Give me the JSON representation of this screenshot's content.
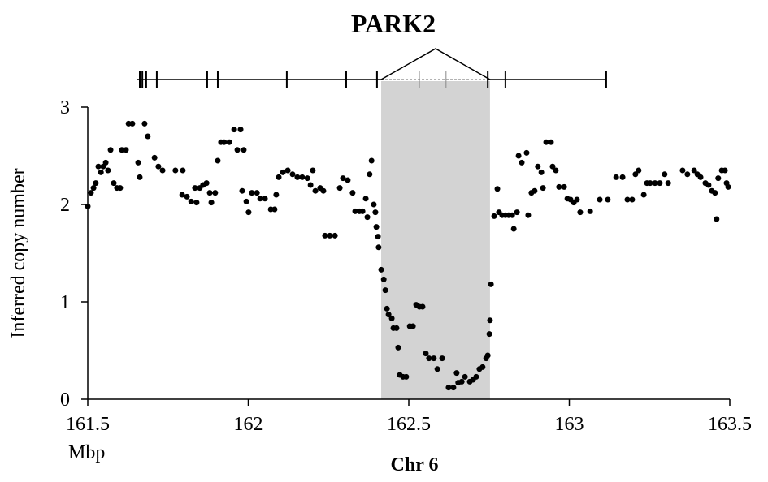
{
  "chart_data": {
    "type": "scatter",
    "title": "PARK2",
    "xlabel": "Chr 6",
    "x_unit": "Mbp",
    "ylabel": "Inferred copy number",
    "xlim": [
      161.5,
      163.5
    ],
    "xticks": [
      161.5,
      162,
      162.5,
      163,
      163.5
    ],
    "ylim": [
      0,
      3
    ],
    "yticks": [
      0,
      1,
      2,
      3
    ],
    "color": "#000000",
    "highlight_color": "#d3d3d3",
    "highlight": [
      162.414,
      162.753
    ],
    "gene": {
      "start": 161.652,
      "end": 163.115,
      "exons": [
        161.662,
        161.67,
        161.682,
        161.715,
        161.872,
        161.905,
        162.12,
        162.305,
        162.401,
        162.533,
        162.616,
        162.746,
        162.801,
        163.115
      ]
    },
    "x": [
      161.5,
      161.51,
      161.518,
      161.525,
      161.533,
      161.541,
      161.548,
      161.556,
      161.563,
      161.571,
      161.581,
      161.591,
      161.601,
      161.606,
      161.619,
      161.627,
      161.639,
      161.657,
      161.662,
      161.677,
      161.687,
      161.708,
      161.72,
      161.733,
      161.773,
      161.796,
      161.794,
      161.809,
      161.822,
      161.834,
      161.839,
      161.849,
      161.859,
      161.87,
      161.88,
      161.885,
      161.897,
      161.905,
      161.915,
      161.925,
      161.941,
      161.956,
      161.976,
      161.966,
      161.986,
      161.981,
      161.994,
      162.001,
      162.011,
      162.027,
      162.037,
      162.052,
      162.07,
      162.082,
      162.087,
      162.095,
      162.108,
      162.123,
      162.138,
      162.153,
      162.168,
      162.184,
      162.194,
      162.201,
      162.209,
      162.224,
      162.234,
      162.239,
      162.254,
      162.27,
      162.285,
      162.295,
      162.31,
      162.325,
      162.333,
      162.346,
      162.356,
      162.366,
      162.371,
      162.378,
      162.384,
      162.391,
      162.396,
      162.399,
      162.404,
      162.406,
      162.414,
      162.422,
      162.427,
      162.432,
      162.437,
      162.447,
      162.452,
      162.462,
      162.467,
      162.472,
      162.482,
      162.492,
      162.503,
      162.513,
      162.523,
      162.533,
      162.543,
      162.553,
      162.563,
      162.578,
      162.589,
      162.604,
      162.624,
      162.639,
      162.649,
      162.654,
      162.665,
      162.675,
      162.69,
      162.7,
      162.71,
      162.72,
      162.73,
      162.741,
      162.746,
      162.751,
      162.753,
      162.756,
      162.766,
      162.776,
      162.781,
      162.791,
      162.801,
      162.811,
      162.822,
      162.827,
      162.837,
      162.842,
      162.852,
      162.867,
      162.872,
      162.882,
      162.892,
      162.902,
      162.913,
      162.918,
      162.928,
      162.943,
      162.948,
      162.958,
      162.968,
      162.984,
      162.994,
      163.004,
      163.014,
      163.024,
      163.034,
      163.065,
      163.095,
      163.12,
      163.146,
      163.166,
      163.181,
      163.196,
      163.206,
      163.216,
      163.232,
      163.242,
      163.252,
      163.267,
      163.282,
      163.297,
      163.308,
      163.353,
      163.368,
      163.389,
      163.399,
      163.409,
      163.424,
      163.434,
      163.444,
      163.454,
      163.459,
      163.464,
      163.475,
      163.485,
      163.49,
      163.495
    ],
    "values": [
      1.98,
      2.12,
      2.17,
      2.22,
      2.39,
      2.33,
      2.39,
      2.43,
      2.35,
      2.56,
      2.22,
      2.17,
      2.17,
      2.56,
      2.56,
      2.83,
      2.83,
      2.43,
      2.28,
      2.83,
      2.7,
      2.48,
      2.39,
      2.35,
      2.35,
      2.35,
      2.1,
      2.08,
      2.03,
      2.17,
      2.02,
      2.17,
      2.2,
      2.22,
      2.12,
      2.02,
      2.12,
      2.45,
      2.64,
      2.64,
      2.64,
      2.77,
      2.77,
      2.56,
      2.56,
      2.14,
      2.03,
      1.92,
      2.12,
      2.12,
      2.06,
      2.06,
      1.95,
      1.95,
      2.1,
      2.28,
      2.33,
      2.35,
      2.31,
      2.28,
      2.28,
      2.27,
      2.2,
      2.35,
      2.14,
      2.17,
      2.14,
      1.68,
      1.68,
      1.68,
      2.17,
      2.27,
      2.25,
      2.12,
      1.93,
      1.93,
      1.93,
      2.06,
      1.87,
      2.31,
      2.45,
      2.0,
      1.92,
      1.77,
      1.67,
      1.56,
      1.33,
      1.23,
      1.12,
      0.93,
      0.87,
      0.83,
      0.73,
      0.73,
      0.53,
      0.25,
      0.23,
      0.23,
      0.75,
      0.75,
      0.97,
      0.95,
      0.95,
      0.47,
      0.42,
      0.42,
      0.31,
      0.42,
      0.12,
      0.12,
      0.27,
      0.17,
      0.18,
      0.23,
      0.18,
      0.2,
      0.23,
      0.31,
      0.33,
      0.42,
      0.45,
      0.67,
      0.81,
      1.18,
      1.88,
      2.16,
      1.92,
      1.89,
      1.89,
      1.89,
      1.89,
      1.75,
      1.92,
      2.5,
      2.43,
      2.53,
      1.89,
      2.12,
      2.14,
      2.39,
      2.33,
      2.17,
      2.64,
      2.64,
      2.39,
      2.35,
      2.18,
      2.18,
      2.06,
      2.05,
      2.02,
      2.05,
      1.92,
      1.93,
      2.05,
      2.05,
      2.28,
      2.28,
      2.05,
      2.05,
      2.31,
      2.35,
      2.1,
      2.22,
      2.22,
      2.22,
      2.22,
      2.31,
      2.22,
      2.35,
      2.31,
      2.35,
      2.31,
      2.28,
      2.22,
      2.2,
      2.14,
      2.12,
      1.85,
      2.27,
      2.35,
      2.35,
      2.22,
      2.18
    ]
  }
}
